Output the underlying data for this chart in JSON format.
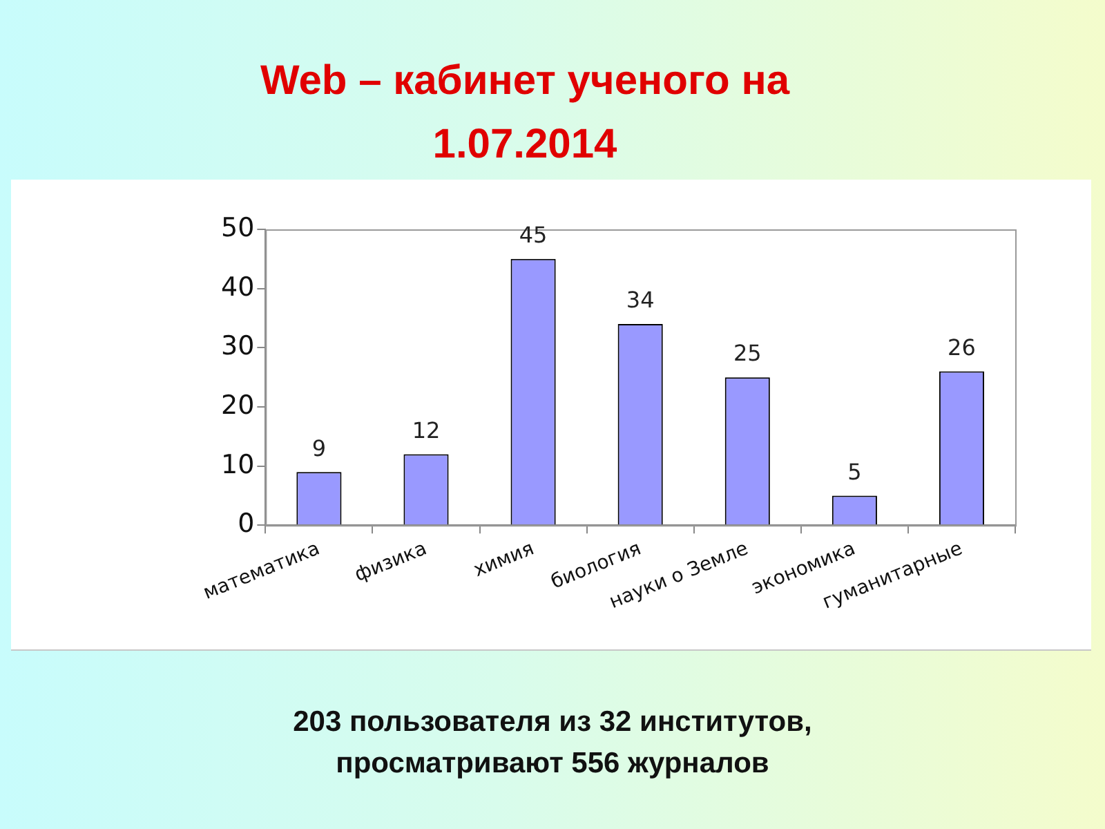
{
  "chart_data": {
    "type": "bar",
    "title": "Web – кабинет ученого на 1.07.2014",
    "categories": [
      "математика",
      "физика",
      "химия",
      "биология",
      "науки о Земле",
      "экономика",
      "гуманитарные"
    ],
    "values": [
      9,
      12,
      45,
      34,
      25,
      5,
      26
    ],
    "color": "#9999ff",
    "ylim": [
      0,
      50
    ],
    "yticks": [
      0,
      10,
      20,
      30,
      40,
      50
    ],
    "grid": false,
    "legend": false,
    "data_labels": true,
    "annotations": [
      "203 пользователя из 32 институтов, просматривают 556 журналов"
    ]
  }
}
